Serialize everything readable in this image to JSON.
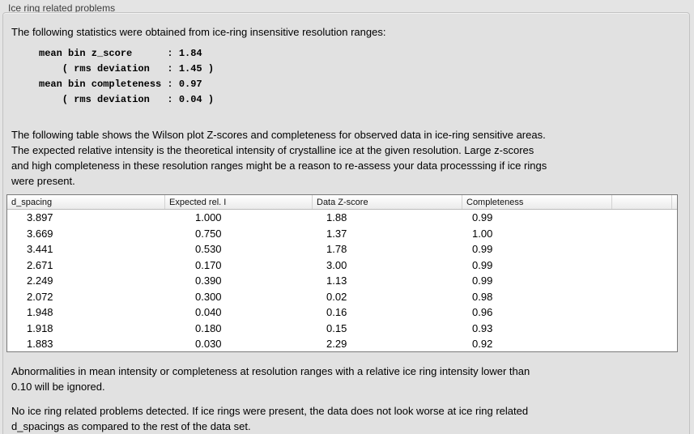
{
  "panel": {
    "title": "Ice ring related problems"
  },
  "intro": "The following statistics were obtained from ice-ring insensitive resolution ranges:",
  "stats_block": "mean bin z_score      : 1.84\n    ( rms deviation   : 1.45 )\nmean bin completeness : 0.97\n    ( rms deviation   : 0.04 )",
  "stats": {
    "mean_bin_z_score": "1.84",
    "z_score_rms_deviation": "1.45",
    "mean_bin_completeness": "0.97",
    "completeness_rms_deviation": "0.04"
  },
  "description": "The following table shows the Wilson plot Z-scores and completeness for observed data in ice-ring sensitive areas.\nThe expected relative intensity is the theoretical intensity of crystalline ice at the given resolution. Large z-scores\nand high completeness in these resolution ranges might be a reason to re-assess your data processsing if ice rings\nwere present.",
  "table": {
    "columns": [
      "d_spacing",
      "Expected rel. I",
      "Data Z-score",
      "Completeness",
      ""
    ],
    "rows": [
      [
        "3.897",
        "1.000",
        "1.88",
        "0.99"
      ],
      [
        "3.669",
        "0.750",
        "1.37",
        "1.00"
      ],
      [
        "3.441",
        "0.530",
        "1.78",
        "0.99"
      ],
      [
        "2.671",
        "0.170",
        "3.00",
        "0.99"
      ],
      [
        "2.249",
        "0.390",
        "1.13",
        "0.99"
      ],
      [
        "2.072",
        "0.300",
        "0.02",
        "0.98"
      ],
      [
        "1.948",
        "0.040",
        "0.16",
        "0.96"
      ],
      [
        "1.918",
        "0.180",
        "0.15",
        "0.93"
      ],
      [
        "1.883",
        "0.030",
        "2.29",
        "0.92"
      ]
    ]
  },
  "note_ignore": "Abnormalities in mean intensity or completeness at resolution ranges with a relative ice ring intensity lower than\n0.10 will be ignored.",
  "conclusion": "No ice ring related problems detected. If ice rings were present, the data does not look worse at ice ring related\nd_spacings as compared to the rest of the data set.",
  "colors": {
    "background": "#e4e4e4",
    "box_background": "#e1e1e1",
    "box_border": "#c2c2c2",
    "table_background": "#ffffff",
    "table_border": "#7a7a7a",
    "text": "#000000",
    "title_text": "#3c3c3c"
  }
}
